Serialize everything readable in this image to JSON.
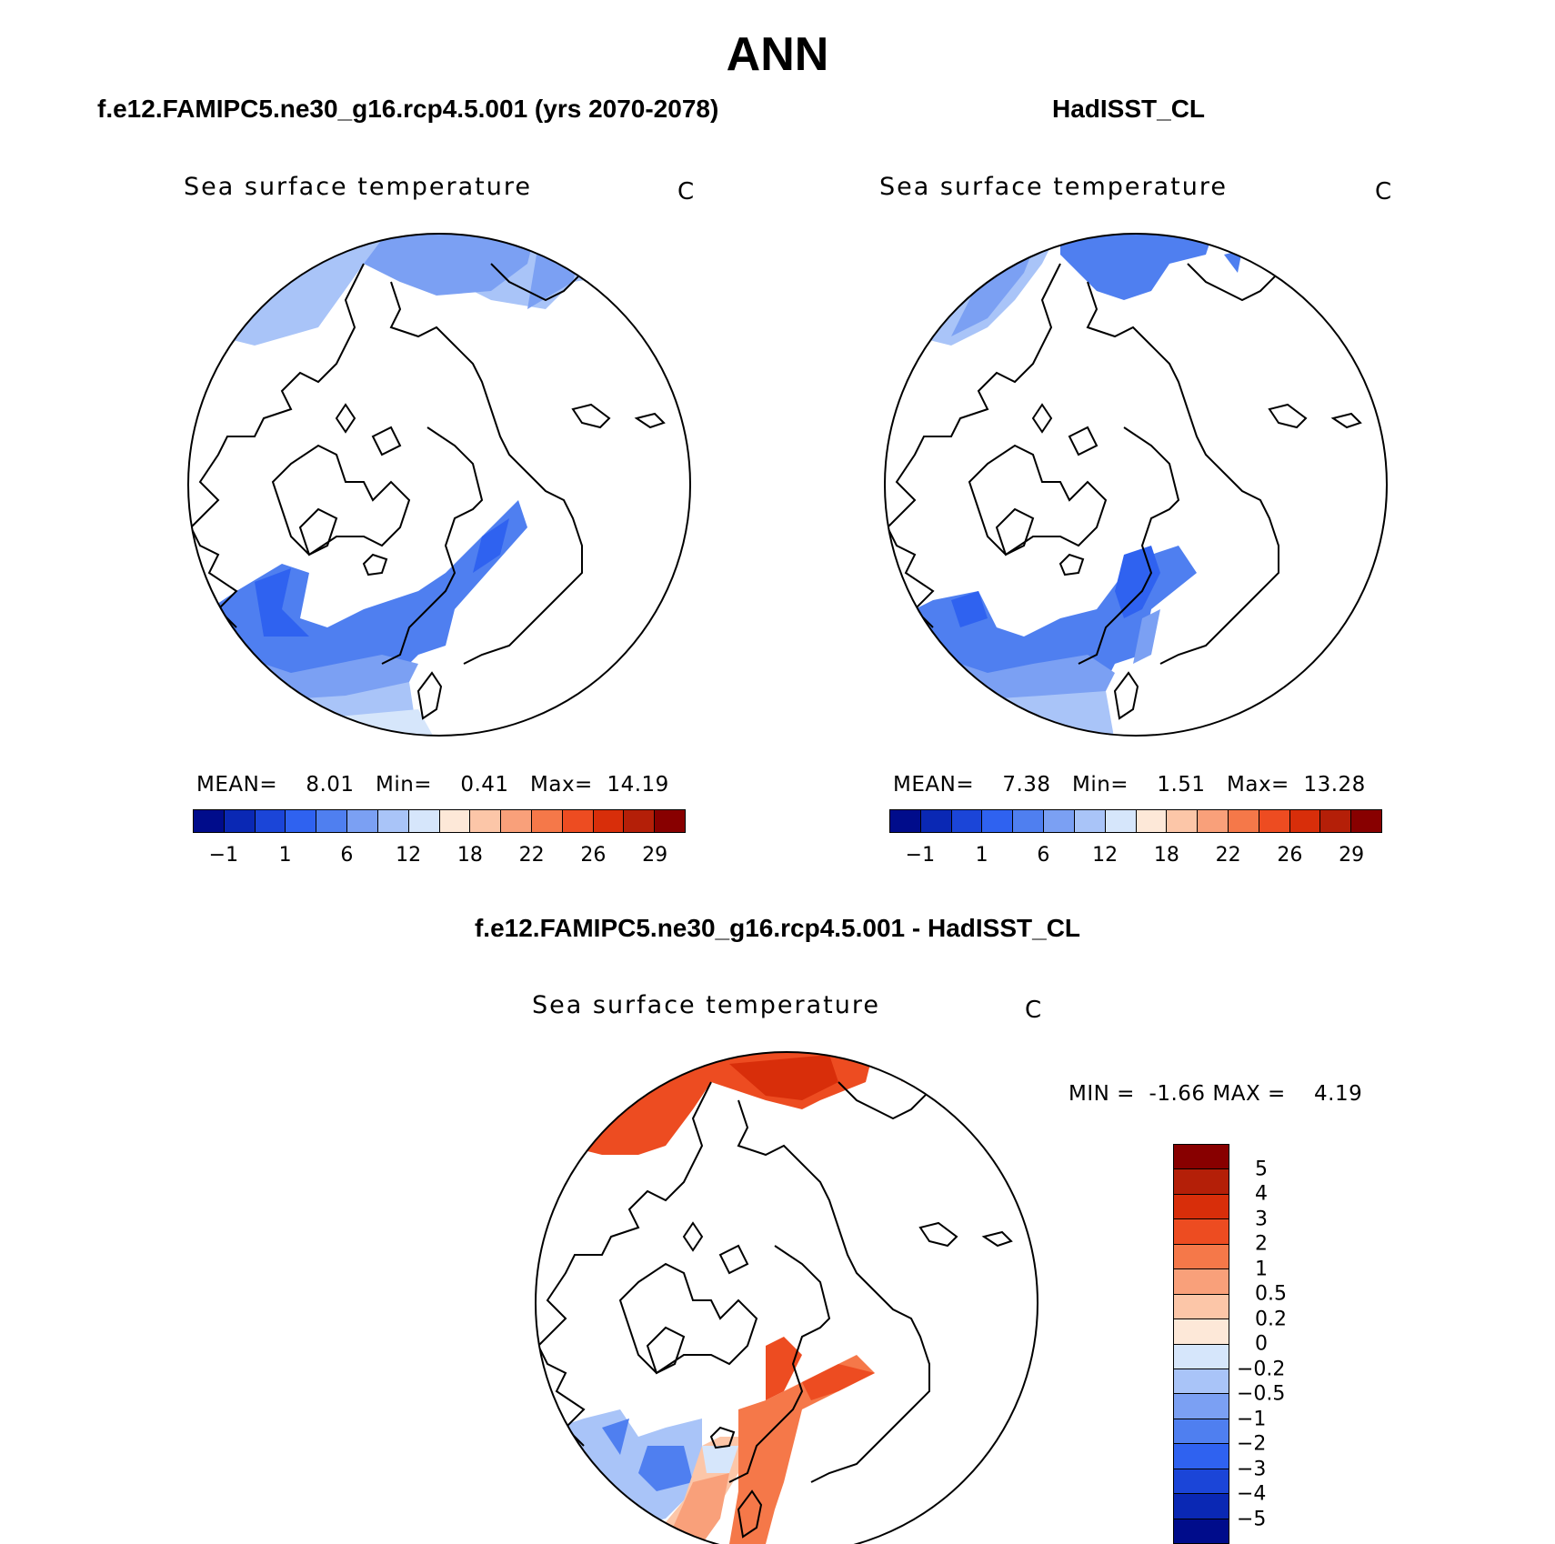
{
  "title": "ANN",
  "panels": [
    {
      "title": "f.e12.FAMIPC5.ne30_g16.rcp4.5.001 (yrs 2070-2078)",
      "variable": "Sea surface temperature",
      "units": "C",
      "stats": {
        "mean_label": "MEAN=",
        "mean": "8.01",
        "min_label": "Min=",
        "min": "0.41",
        "max_label": "Max=",
        "max": "14.19"
      }
    },
    {
      "title": "HadISST_CL",
      "variable": "Sea surface temperature",
      "units": "C",
      "stats": {
        "mean_label": "MEAN=",
        "mean": "7.38",
        "min_label": "Min=",
        "min": "1.51",
        "max_label": "Max=",
        "max": "13.28"
      }
    },
    {
      "title": "f.e12.FAMIPC5.ne30_g16.rcp4.5.001 - HadISST_CL",
      "variable": "Sea surface temperature",
      "units": "C",
      "stats": {
        "min_label": "MIN =",
        "min": "-1.66",
        "max_label": "MAX =",
        "max": "4.19"
      }
    }
  ],
  "colorbar_abs": {
    "colors": [
      "#000c8b",
      "#0a28b4",
      "#1b45d8",
      "#2f62f0",
      "#4f7ff0",
      "#7ba0f3",
      "#a9c4f8",
      "#d6e6fb",
      "#fde8d8",
      "#fcc6a8",
      "#f9a07a",
      "#f57849",
      "#ed4c21",
      "#d82e0a",
      "#b41f08",
      "#880000"
    ],
    "labels": [
      "−1",
      "1",
      "6",
      "12",
      "18",
      "22",
      "26",
      "29"
    ]
  },
  "colorbar_diff": {
    "colors": [
      "#880000",
      "#b41f08",
      "#d82e0a",
      "#ed4c21",
      "#f57849",
      "#f9a07a",
      "#fcc6a8",
      "#fde8d8",
      "#d6e6fb",
      "#a9c4f8",
      "#7ba0f3",
      "#4f7ff0",
      "#2f62f0",
      "#1b45d8",
      "#0a28b4",
      "#000c8b"
    ],
    "labels": [
      "5",
      "4",
      "3",
      "2",
      "1",
      "0.5",
      "0.2",
      "0",
      "−0.2",
      "−0.5",
      "−1",
      "−2",
      "−3",
      "−4",
      "−5"
    ]
  }
}
